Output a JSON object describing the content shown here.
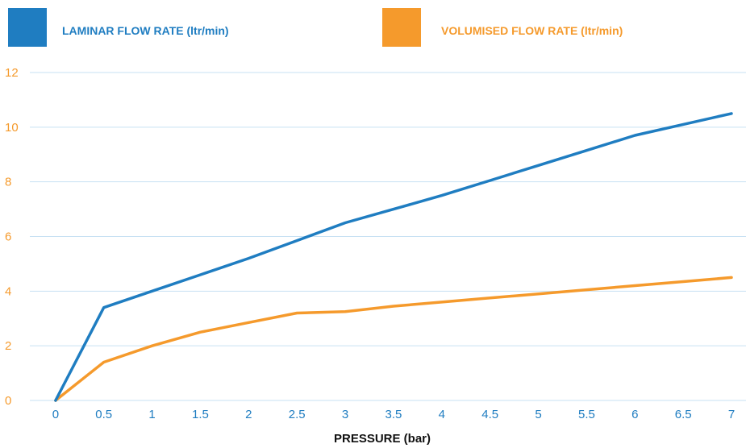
{
  "chart_data": {
    "type": "line",
    "title": "",
    "xlabel": "PRESSURE (bar)",
    "ylabel": "",
    "x": [
      0,
      0.5,
      1,
      1.5,
      2,
      2.5,
      3,
      3.5,
      4,
      4.5,
      5,
      5.5,
      6,
      6.5,
      7
    ],
    "x_tick_labels": [
      "0",
      "0.5",
      "1",
      "1.5",
      "2",
      "2.5",
      "3",
      "3.5",
      "4",
      "4.5",
      "5",
      "5.5",
      "6",
      "6.5",
      "7"
    ],
    "y_tick_labels": [
      "0",
      "2",
      "4",
      "6",
      "8",
      "10",
      "12"
    ],
    "ylim": [
      0,
      12
    ],
    "grid": true,
    "legend_position": "top",
    "series": [
      {
        "name": "LAMINAR FLOW RATE (ltr/min)",
        "color": "#1f7dc1",
        "points": [
          [
            0,
            0
          ],
          [
            0.5,
            3.4
          ],
          [
            1,
            4.0
          ],
          [
            1.5,
            4.6
          ],
          [
            2,
            5.2
          ],
          [
            2.5,
            5.85
          ],
          [
            3,
            6.5
          ],
          [
            3.5,
            7.0
          ],
          [
            4,
            7.5
          ],
          [
            4.5,
            8.05
          ],
          [
            5,
            8.6
          ],
          [
            5.5,
            9.15
          ],
          [
            6,
            9.7
          ],
          [
            6.5,
            10.1
          ],
          [
            7,
            10.5
          ]
        ]
      },
      {
        "name": "VOLUMISED FLOW RATE (ltr/min)",
        "color": "#f59a2c",
        "points": [
          [
            0,
            0
          ],
          [
            0.5,
            1.4
          ],
          [
            1,
            2.0
          ],
          [
            1.5,
            2.5
          ],
          [
            2,
            2.85
          ],
          [
            2.5,
            3.2
          ],
          [
            3,
            3.25
          ],
          [
            3.5,
            3.45
          ],
          [
            4,
            3.6
          ],
          [
            4.5,
            3.75
          ],
          [
            5,
            3.9
          ],
          [
            5.5,
            4.05
          ],
          [
            6,
            4.2
          ],
          [
            6.5,
            4.35
          ],
          [
            7,
            4.5
          ]
        ]
      }
    ],
    "colors": {
      "grid": "#c7e1f3",
      "x_ticks": "#1f7dc1",
      "y_ticks": "#f59a2c"
    }
  }
}
